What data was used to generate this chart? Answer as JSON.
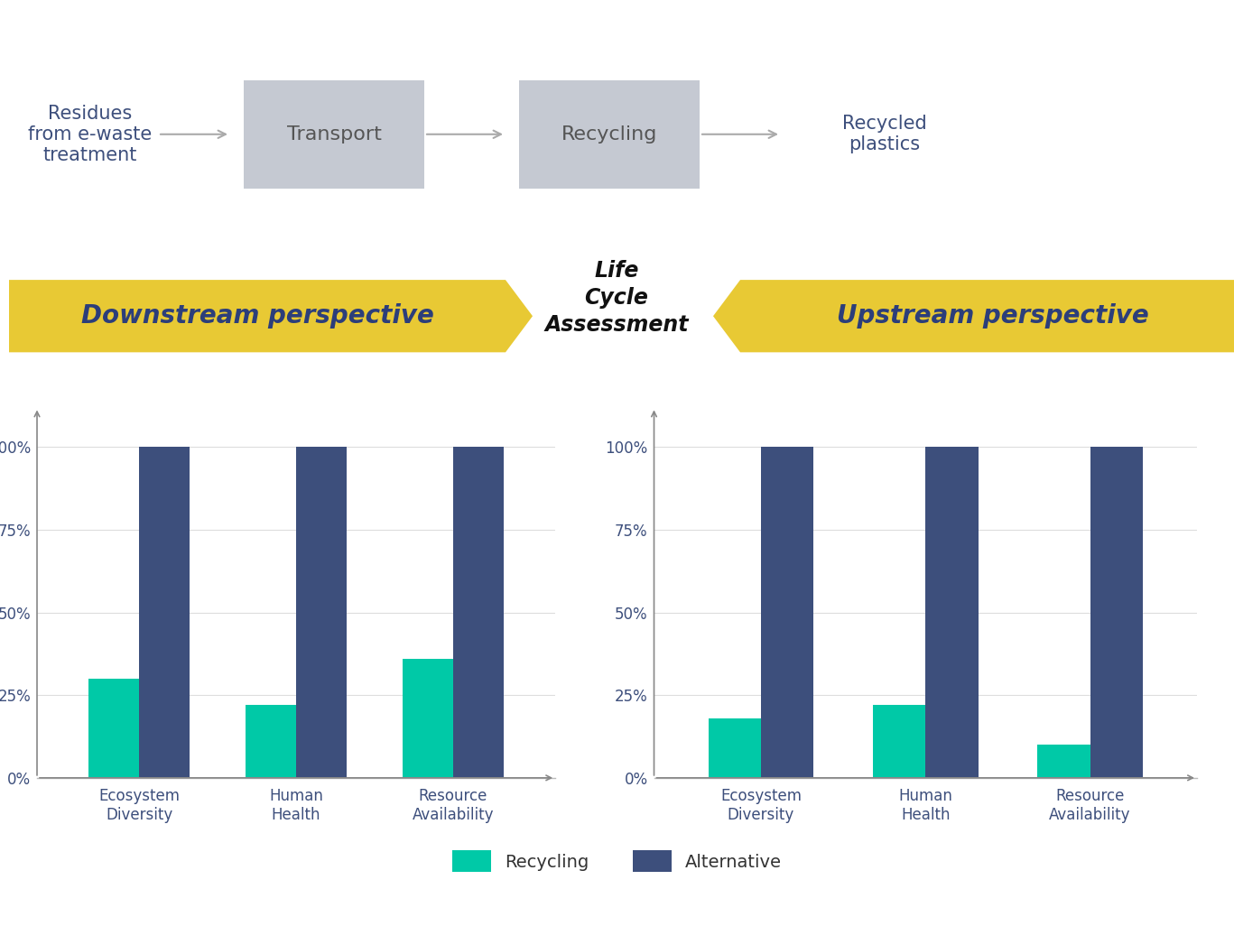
{
  "background_color": "#ffffff",
  "box_color": "#c5c9d2",
  "box_text_color": "#555555",
  "flow_text_color": "#3d4f7c",
  "arrow_color": "#aaaaaa",
  "recycling_color": "#00C9A7",
  "alternative_color": "#3d4f7c",
  "axis_label_color": "#3d4f7c",
  "ytick_labels": [
    "0%",
    "25%",
    "50%",
    "75%",
    "100%"
  ],
  "ytick_values": [
    0,
    25,
    50,
    75,
    100
  ],
  "downstream_label": "Downstream perspective",
  "upstream_label": "Upstream perspective",
  "lca_text": "Life\nCycle\nAssessment",
  "banner_color": "#E8C934",
  "banner_text_color": "#2c3e7a",
  "left_chart": {
    "categories": [
      "Ecosystem\nDiversity",
      "Human\nHealth",
      "Resource\nAvailability"
    ],
    "recycling_values": [
      30,
      22,
      36
    ],
    "alternative_values": [
      100,
      100,
      100
    ]
  },
  "right_chart": {
    "categories": [
      "Ecosystem\nDiversity",
      "Human\nHealth",
      "Resource\nAvailability"
    ],
    "recycling_values": [
      18,
      22,
      10
    ],
    "alternative_values": [
      100,
      100,
      100
    ]
  },
  "legend_recycling_label": "Recycling",
  "legend_alternative_label": "Alternative"
}
